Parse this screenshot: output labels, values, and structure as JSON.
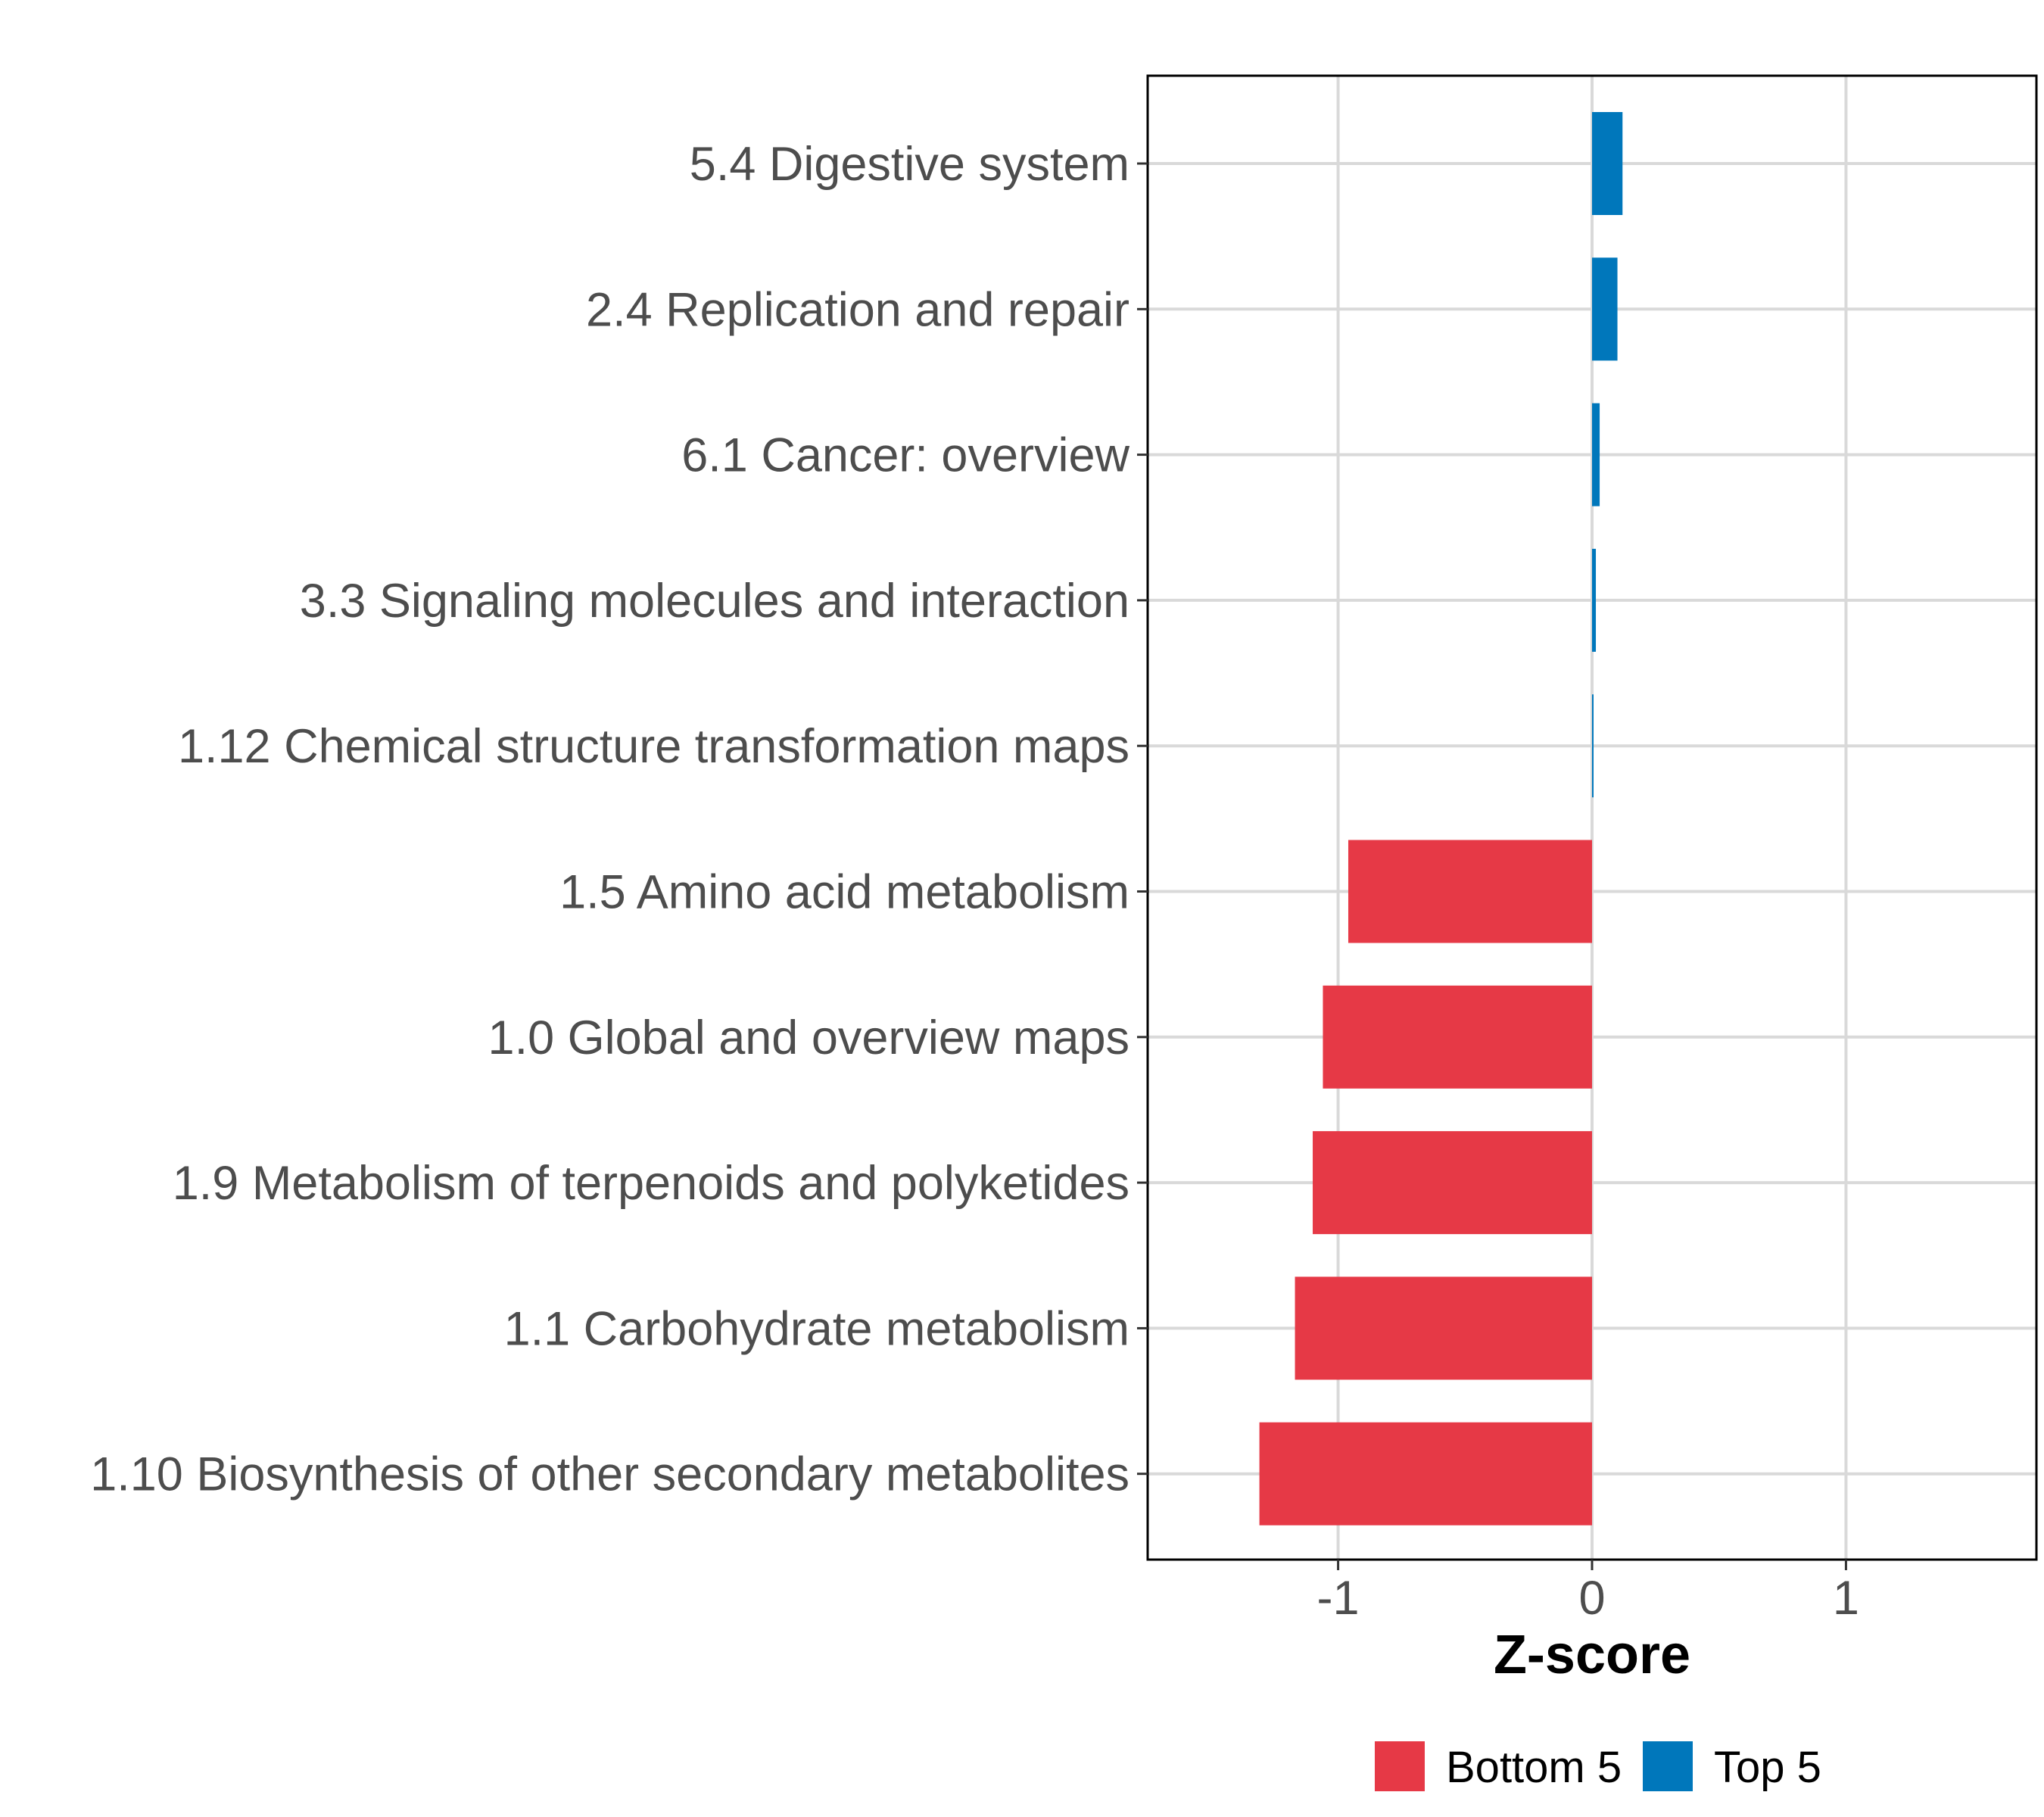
{
  "chart_data": {
    "type": "bar",
    "orientation": "horizontal",
    "xlabel": "Z-score",
    "ylabel": "",
    "xlim": [
      -1.75,
      1.75
    ],
    "xticks": [
      -1,
      0,
      1
    ],
    "grid": true,
    "legend_position": "bottom",
    "categories": [
      "5.4 Digestive system",
      "2.4 Replication and repair",
      "6.1 Cancer: overview",
      "3.3 Signaling molecules and interaction",
      "1.12 Chemical structure transformation maps",
      "1.5 Amino acid metabolism",
      "1.0 Global and overview maps",
      "1.9 Metabolism of terpenoids and polyketides",
      "1.1 Carbohydrate metabolism",
      "1.10 Biosynthesis of other secondary metabolites"
    ],
    "values": [
      0.12,
      0.1,
      0.03,
      0.015,
      0.005,
      -0.96,
      -1.06,
      -1.1,
      -1.17,
      -1.31
    ],
    "groups": [
      "Top 5",
      "Top 5",
      "Top 5",
      "Top 5",
      "Top 5",
      "Bottom 5",
      "Bottom 5",
      "Bottom 5",
      "Bottom 5",
      "Bottom 5"
    ],
    "legend": [
      {
        "name": "Bottom 5",
        "color": "#e63946"
      },
      {
        "name": "Top 5",
        "color": "#0077bb"
      }
    ]
  }
}
